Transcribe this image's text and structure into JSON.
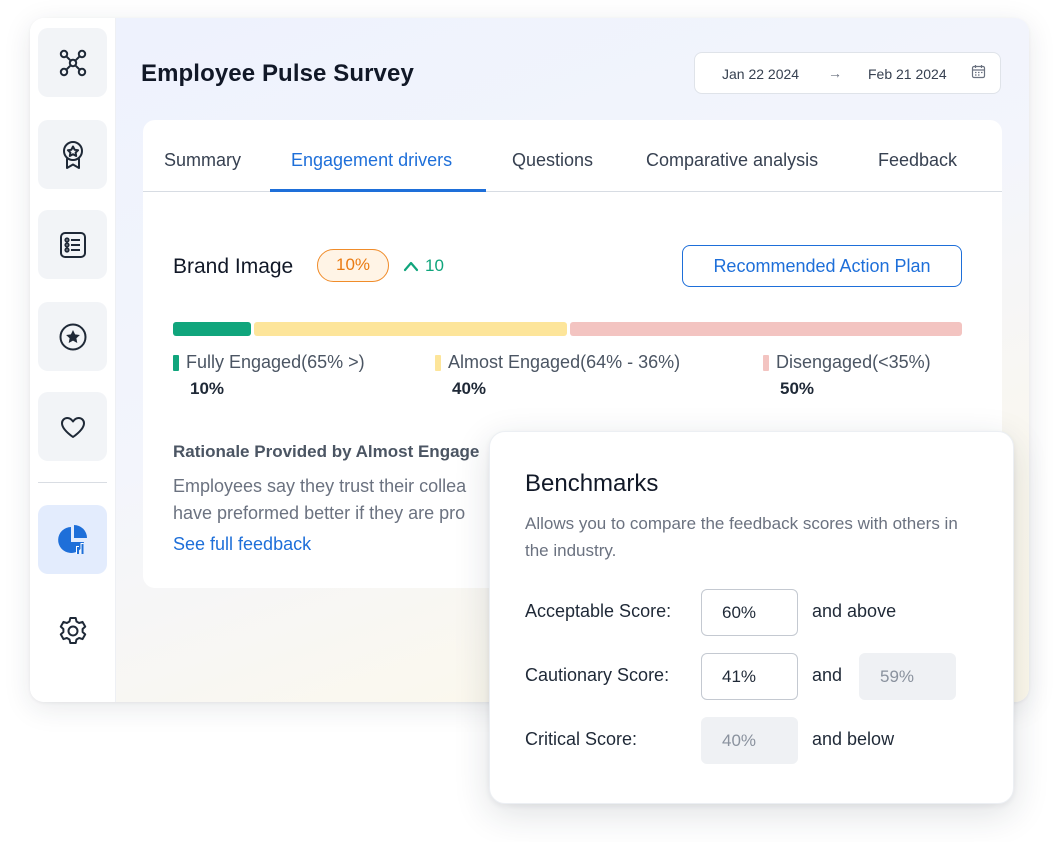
{
  "page": {
    "title": "Employee Pulse Survey"
  },
  "date_range": {
    "start": "Jan 22 2024",
    "arrow": "→",
    "end": "Feb 21 2024"
  },
  "sidebar": {
    "items": [
      {
        "icon": "network-icon"
      },
      {
        "icon": "award-badge-icon"
      },
      {
        "icon": "survey-list-icon"
      },
      {
        "icon": "star-circle-icon"
      },
      {
        "icon": "heart-icon"
      },
      {
        "icon": "pie-chart-analytics-icon",
        "active": true
      },
      {
        "icon": "gear-icon"
      }
    ]
  },
  "tabs": [
    {
      "label": "Summary"
    },
    {
      "label": "Engagement drivers",
      "active": true
    },
    {
      "label": "Questions"
    },
    {
      "label": "Comparative analysis"
    },
    {
      "label": "Feedback"
    }
  ],
  "driver": {
    "name": "Brand Image",
    "score_badge": "10%",
    "trend_value": "10",
    "action_button": "Recommended Action Plan"
  },
  "engagement": [
    {
      "label": "Fully Engaged(65% >)",
      "value": "10%",
      "fraction": 0.1,
      "color": "#10a57c"
    },
    {
      "label": "Almost Engaged(64% - 36%)",
      "value": "40%",
      "fraction": 0.4,
      "color": "#fde59a"
    },
    {
      "label": "Disengaged(<35%)",
      "value": "50%",
      "fraction": 0.5,
      "color": "#f3c4c1"
    }
  ],
  "rationale": {
    "title": "Rationale Provided by Almost Engage",
    "line1": "Employees say they trust their collea",
    "line2": "have preformed better if they are pro",
    "link": "See full feedback"
  },
  "benchmarks": {
    "title": "Benchmarks",
    "description": "Allows you to compare the feedback scores with others in the industry.",
    "acceptable": {
      "label": "Acceptable Score:",
      "value": "60%",
      "suffix": "and above"
    },
    "cautionary": {
      "label": "Cautionary Score:",
      "value": "41%",
      "joiner": "and",
      "upper": "59%"
    },
    "critical": {
      "label": "Critical Score:",
      "value": "40%",
      "suffix": "and below"
    }
  },
  "colors": {
    "accent": "#1e6fd9",
    "positive": "#10a57c",
    "badge_orange": "#ea7b12"
  }
}
